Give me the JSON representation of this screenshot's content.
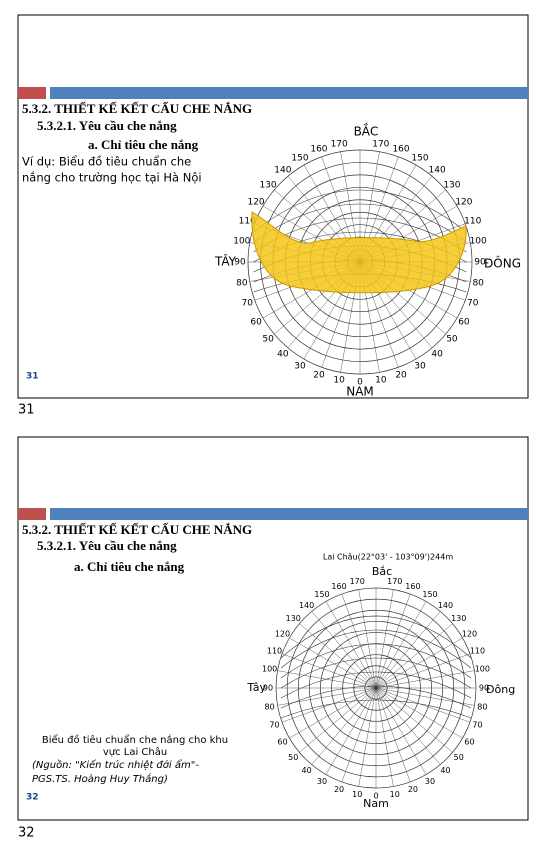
{
  "slides": [
    {
      "heading": "5.3.2. THIẾT KẾ KẾT CẤU CHE NẮNG",
      "subheading": "5.3.2.1. Yêu cầu che nắng",
      "section": "a. Chỉ tiêu che nắng",
      "text": [
        "Ví dụ: Biểu đồ tiêu chuẩn che",
        "nắng cho trường học tại Hà Nội"
      ],
      "slide_number": "31",
      "page_number": "31",
      "diagram": {
        "north": "BẮC",
        "south": "NAM",
        "west": "TÂY",
        "east": "ĐÔNG",
        "azimuth_labels": [
          "0",
          "10",
          "20",
          "30",
          "40",
          "50",
          "60",
          "70",
          "80",
          "90",
          "100",
          "110",
          "120",
          "130",
          "140",
          "150",
          "160",
          "170"
        ]
      }
    },
    {
      "heading": "5.3.2. THIẾT KẾ KẾT CẤU CHE NẮNG",
      "subheading": "5.3.2.1. Yêu cầu che nắng",
      "section": "a. Chỉ tiêu che nắng",
      "caption": [
        "Biểu đồ tiêu chuẩn che nắng cho khu",
        "vực Lai Châu"
      ],
      "source": [
        "(Nguồn: \"Kiến trúc nhiệt đới ẩm\"-",
        "PGS.TS. Hoàng Huy Thắng)"
      ],
      "slide_number": "32",
      "page_number": "32",
      "diagram": {
        "title": "Lai Châu(22°03' - 103°09')244m",
        "north": "Bắc",
        "south": "Nam",
        "west": "Tây",
        "east": "Đông",
        "azimuth_labels": [
          "0",
          "10",
          "20",
          "30",
          "40",
          "50",
          "60",
          "70",
          "80",
          "90",
          "100",
          "110",
          "120",
          "130",
          "140",
          "150",
          "160",
          "170"
        ]
      }
    }
  ]
}
